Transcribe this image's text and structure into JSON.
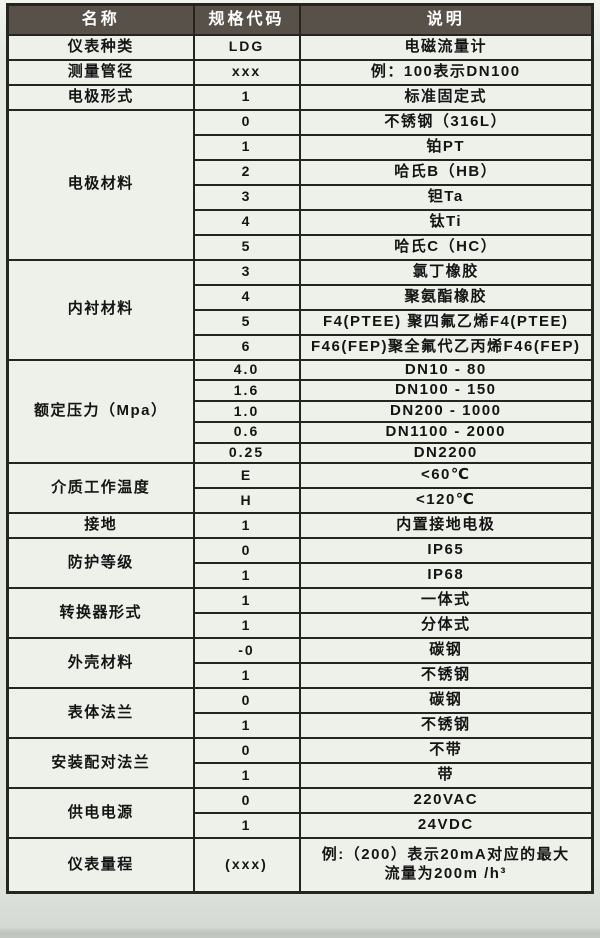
{
  "table": {
    "headers": [
      "名称",
      "规格代码",
      "说明"
    ],
    "groups": [
      {
        "name": "仪表种类",
        "rows": [
          {
            "code": "LDG",
            "desc": "电磁流量计"
          }
        ]
      },
      {
        "name": "测量管径",
        "rows": [
          {
            "code": "xxx",
            "desc": "例：100表示DN100"
          }
        ]
      },
      {
        "name": "电极形式",
        "rows": [
          {
            "code": "1",
            "desc": "标准固定式"
          }
        ]
      },
      {
        "name": "电极材料",
        "rows": [
          {
            "code": "0",
            "desc": "不锈钢（316L）"
          },
          {
            "code": "1",
            "desc": "铂PT"
          },
          {
            "code": "2",
            "desc": "哈氏B（HB）"
          },
          {
            "code": "3",
            "desc": "钽Ta"
          },
          {
            "code": "4",
            "desc": "钛Ti"
          },
          {
            "code": "5",
            "desc": "哈氏C（HC）"
          }
        ]
      },
      {
        "name": "内衬材料",
        "rows": [
          {
            "code": "3",
            "desc": "氯丁橡胶"
          },
          {
            "code": "4",
            "desc": "聚氨酯橡胶"
          },
          {
            "code": "5",
            "desc": "F4(PTEE) 聚四氟乙烯F4(PTEE)"
          },
          {
            "code": "6",
            "desc": "F46(FEP)聚全氟代乙丙烯F46(FEP)"
          }
        ]
      },
      {
        "name": "额定压力（Mpa）",
        "compact": true,
        "rows": [
          {
            "code": "4.0",
            "desc": "DN10 - 80"
          },
          {
            "code": "1.6",
            "desc": "DN100 - 150"
          },
          {
            "code": "1.0",
            "desc": "DN200 - 1000"
          },
          {
            "code": "0.6",
            "desc": "DN1100 - 2000"
          },
          {
            "code": "0.25",
            "desc": "DN2200"
          }
        ]
      },
      {
        "name": "介质工作温度",
        "rows": [
          {
            "code": "E",
            "desc": "<60℃"
          },
          {
            "code": "H",
            "desc": "<120℃"
          }
        ]
      },
      {
        "name": "接地",
        "rows": [
          {
            "code": "1",
            "desc": "内置接地电极"
          }
        ]
      },
      {
        "name": "防护等级",
        "rows": [
          {
            "code": "0",
            "desc": "IP65"
          },
          {
            "code": "1",
            "desc": "IP68"
          }
        ]
      },
      {
        "name": "转换器形式",
        "rows": [
          {
            "code": "1",
            "desc": "一体式"
          },
          {
            "code": "1",
            "desc": "分体式"
          }
        ]
      },
      {
        "name": "外壳材料",
        "rows": [
          {
            "code": "-0",
            "desc": "碳钢"
          },
          {
            "code": "1",
            "desc": "不锈钢"
          }
        ]
      },
      {
        "name": "表体法兰",
        "rows": [
          {
            "code": "0",
            "desc": "碳钢"
          },
          {
            "code": "1",
            "desc": "不锈钢"
          }
        ]
      },
      {
        "name": "安装配对法兰",
        "rows": [
          {
            "code": "0",
            "desc": "不带"
          },
          {
            "code": "1",
            "desc": "带"
          }
        ]
      },
      {
        "name": "供电电源",
        "rows": [
          {
            "code": "0",
            "desc": "220VAC"
          },
          {
            "code": "1",
            "desc": "24VDC"
          }
        ]
      },
      {
        "name": "仪表量程",
        "tall": true,
        "rows": [
          {
            "code": "(xxx)",
            "desc": "例:（200）表示20mA对应的最大\n流量为200m /h³"
          }
        ]
      }
    ]
  },
  "colors": {
    "header_bg": "#57514a",
    "header_text": "#ffffff",
    "cell_bg": "#edf1ea",
    "border": "#26241f",
    "text": "#141414"
  }
}
